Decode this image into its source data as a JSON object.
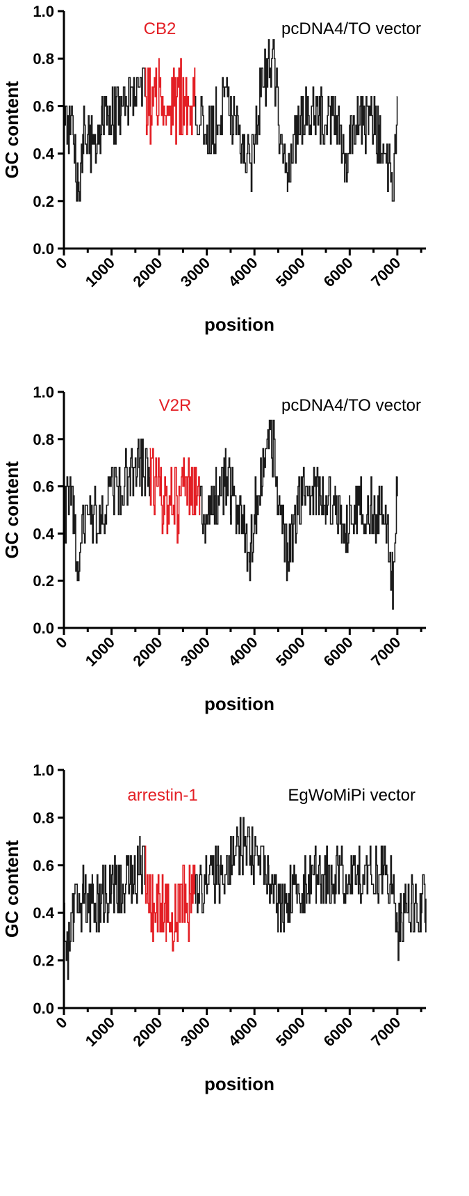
{
  "colors": {
    "insert": "#e31e24",
    "vector": "#1a1a1a",
    "text": "#000000"
  },
  "chart_data": [
    {
      "type": "line",
      "title": "",
      "xlabel": "position",
      "ylabel": "GC content",
      "xlim": [
        0,
        7600
      ],
      "ylim": [
        0,
        1.0
      ],
      "xticks": [
        "0",
        "1000",
        "2000",
        "3000",
        "4000",
        "5000",
        "6000",
        "7000"
      ],
      "yticks": [
        "0.0",
        "0.2",
        "0.4",
        "0.6",
        "0.8",
        "1.0"
      ],
      "grid": false,
      "annotations": {
        "insert_label": "CB2",
        "vector_label": "pcDNA4/TO vector"
      },
      "series": [
        {
          "role": "vector",
          "x": [
            0,
            200,
            300,
            400,
            600,
            800,
            1000,
            1200,
            1400,
            1600,
            1700
          ],
          "y": [
            0.48,
            0.52,
            0.16,
            0.5,
            0.46,
            0.5,
            0.56,
            0.6,
            0.66,
            0.7,
            0.64
          ]
        },
        {
          "role": "insert",
          "x": [
            1700,
            1850,
            2000,
            2150,
            2300,
            2450,
            2600,
            2750
          ],
          "y": [
            0.64,
            0.58,
            0.66,
            0.62,
            0.6,
            0.64,
            0.6,
            0.64
          ]
        },
        {
          "role": "vector",
          "x": [
            2750,
            2900,
            3000,
            3200,
            3400,
            3500,
            3700,
            3900,
            4000,
            4200,
            4400,
            4500,
            4700,
            4900,
            5100,
            5300,
            5500,
            5700,
            5900,
            6000,
            6200,
            6400,
            6600,
            6700,
            6900,
            7000
          ],
          "y": [
            0.64,
            0.5,
            0.44,
            0.54,
            0.62,
            0.56,
            0.46,
            0.3,
            0.48,
            0.72,
            0.78,
            0.56,
            0.3,
            0.52,
            0.56,
            0.58,
            0.5,
            0.56,
            0.32,
            0.5,
            0.54,
            0.52,
            0.48,
            0.5,
            0.2,
            0.64
          ]
        }
      ]
    },
    {
      "type": "line",
      "title": "",
      "xlabel": "position",
      "ylabel": "GC content",
      "xlim": [
        0,
        7600
      ],
      "ylim": [
        0,
        1.0
      ],
      "xticks": [
        "0",
        "1000",
        "2000",
        "3000",
        "4000",
        "5000",
        "6000",
        "7000"
      ],
      "yticks": [
        "0.0",
        "0.2",
        "0.4",
        "0.6",
        "0.8",
        "1.0"
      ],
      "grid": false,
      "annotations": {
        "insert_label": "V2R",
        "vector_label": "pcDNA4/TO vector"
      },
      "series": [
        {
          "role": "vector",
          "x": [
            0,
            200,
            300,
            400,
            600,
            800,
            1000,
            1200,
            1400,
            1600,
            1800
          ],
          "y": [
            0.48,
            0.52,
            0.16,
            0.5,
            0.46,
            0.5,
            0.56,
            0.6,
            0.66,
            0.7,
            0.64
          ]
        },
        {
          "role": "insert",
          "x": [
            1800,
            1950,
            2100,
            2250,
            2400,
            2550,
            2700,
            2850
          ],
          "y": [
            0.64,
            0.6,
            0.52,
            0.58,
            0.5,
            0.6,
            0.54,
            0.56
          ]
        },
        {
          "role": "vector",
          "x": [
            2850,
            3000,
            3200,
            3400,
            3500,
            3700,
            3900,
            4000,
            4200,
            4400,
            4500,
            4700,
            4900,
            5100,
            5300,
            5500,
            5700,
            5900,
            6000,
            6200,
            6400,
            6600,
            6700,
            6900,
            7000
          ],
          "y": [
            0.56,
            0.44,
            0.54,
            0.62,
            0.56,
            0.46,
            0.3,
            0.48,
            0.72,
            0.78,
            0.56,
            0.3,
            0.52,
            0.56,
            0.58,
            0.5,
            0.56,
            0.32,
            0.5,
            0.54,
            0.52,
            0.48,
            0.5,
            0.2,
            0.64
          ]
        }
      ]
    },
    {
      "type": "line",
      "title": "",
      "xlabel": "position",
      "ylabel": "GC content",
      "xlim": [
        0,
        7600
      ],
      "ylim": [
        0,
        1.0
      ],
      "xticks": [
        "0",
        "1000",
        "2000",
        "3000",
        "4000",
        "5000",
        "6000",
        "7000"
      ],
      "yticks": [
        "0.0",
        "0.2",
        "0.4",
        "0.6",
        "0.8",
        "1.0"
      ],
      "grid": false,
      "annotations": {
        "insert_label": "arrestin-1",
        "vector_label": "EgWoMiPi vector"
      },
      "series": [
        {
          "role": "vector",
          "x": [
            0,
            100,
            200,
            400,
            600,
            800,
            1000,
            1200,
            1400,
            1600,
            1700
          ],
          "y": [
            0.36,
            0.22,
            0.4,
            0.46,
            0.44,
            0.46,
            0.5,
            0.48,
            0.56,
            0.6,
            0.56
          ]
        },
        {
          "role": "insert",
          "x": [
            1700,
            1850,
            2000,
            2150,
            2300,
            2450,
            2600,
            2750
          ],
          "y": [
            0.56,
            0.44,
            0.48,
            0.4,
            0.34,
            0.48,
            0.44,
            0.5
          ]
        },
        {
          "role": "vector",
          "x": [
            2750,
            2900,
            3100,
            3300,
            3500,
            3700,
            3900,
            4100,
            4300,
            4500,
            4700,
            4900,
            5100,
            5300,
            5500,
            5700,
            5900,
            6100,
            6300,
            6500,
            6700,
            6900,
            7000,
            7100,
            7300,
            7500,
            7600
          ],
          "y": [
            0.5,
            0.5,
            0.54,
            0.58,
            0.62,
            0.68,
            0.64,
            0.66,
            0.58,
            0.42,
            0.46,
            0.52,
            0.54,
            0.56,
            0.54,
            0.58,
            0.56,
            0.6,
            0.58,
            0.56,
            0.58,
            0.5,
            0.3,
            0.38,
            0.42,
            0.44,
            0.46
          ]
        }
      ]
    }
  ]
}
